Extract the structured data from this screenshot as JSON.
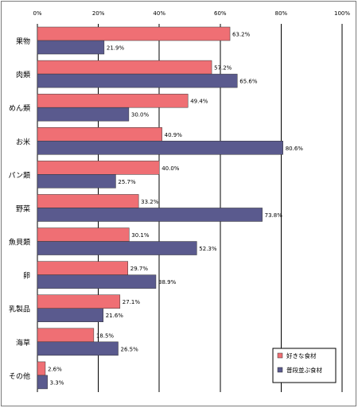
{
  "chart_data": {
    "type": "bar",
    "orientation": "horizontal",
    "categories": [
      "果物",
      "肉類",
      "めん類",
      "お米",
      "パン類",
      "野菜",
      "魚貝類",
      "卵",
      "乳製品",
      "海草",
      "その他"
    ],
    "series": [
      {
        "name": "好きな食材",
        "values": [
          63.2,
          57.2,
          49.4,
          40.9,
          40.0,
          33.2,
          30.1,
          29.7,
          27.1,
          18.5,
          2.6
        ],
        "labels": [
          "63.2%",
          "57.2%",
          "49.4%",
          "40.9%",
          "40.0%",
          "33.2%",
          "30.1%",
          "29.7%",
          "27.1%",
          "18.5%",
          "2.6%"
        ],
        "color": "#ef6f74"
      },
      {
        "name": "普段並ぶ食材",
        "values": [
          21.9,
          65.6,
          30.0,
          80.6,
          25.7,
          73.8,
          52.3,
          38.9,
          21.6,
          26.5,
          3.3
        ],
        "labels": [
          "21.9%",
          "65.6%",
          "30.0%",
          "80.6%",
          "25.7%",
          "73.8%",
          "52.3%",
          "38.9%",
          "21.6%",
          "26.5%",
          "3.3%"
        ],
        "color": "#5a5a8e"
      }
    ],
    "xlim": [
      0,
      100
    ],
    "xticks": [
      0,
      20,
      40,
      60,
      80,
      100
    ],
    "xtick_labels": [
      "0%",
      "20%",
      "40%",
      "60%",
      "80%",
      "100%"
    ],
    "grid": true,
    "legend_position": "bottom-right"
  }
}
